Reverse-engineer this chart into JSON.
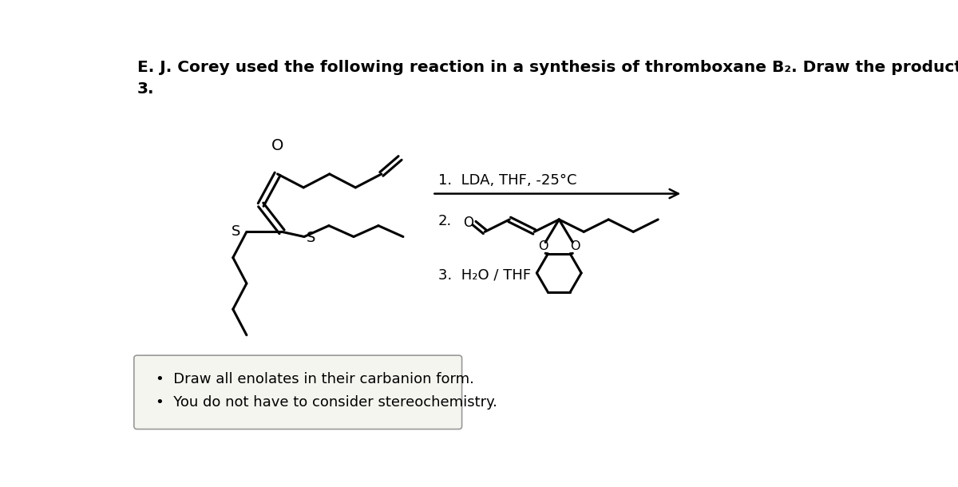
{
  "title_line1": "E. J. Corey used the following reaction in a synthesis of thromboxane B₂. Draw the product of step",
  "title_line2": "3.",
  "title_fontsize": 14.5,
  "title_fontweight": "bold",
  "bg_color": "#ffffff",
  "text_color": "#000000",
  "step1_label": "1.  LDA, THF, -25°C",
  "step2_label": "2.",
  "step3_label": "3.  H₂O / THF",
  "bullet1": "Draw all enolates in their carbanion form.",
  "bullet2": "You do not have to consider stereochemistry.",
  "box_facecolor": "#f5f5f0",
  "box_edgecolor": "#999999"
}
